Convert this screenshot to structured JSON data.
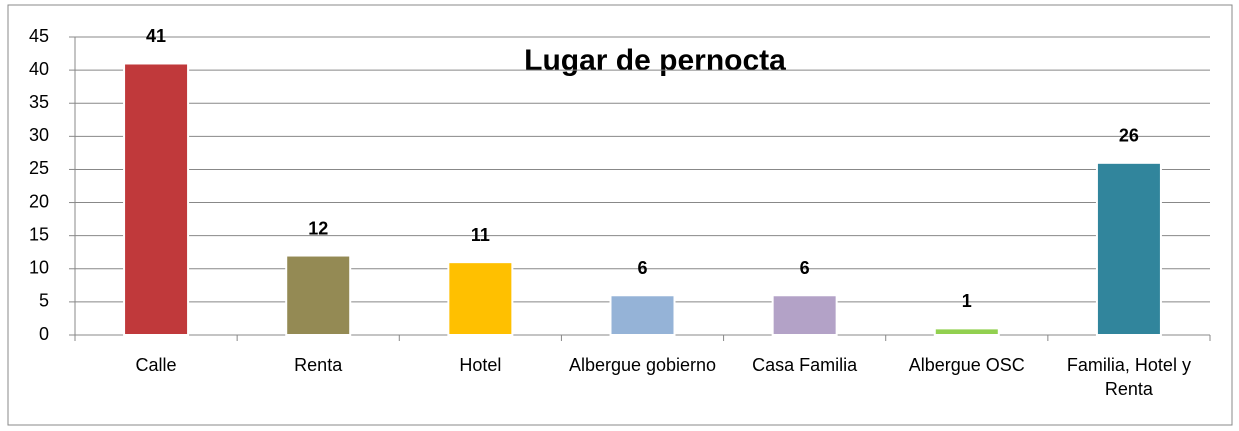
{
  "chart_data": {
    "type": "bar",
    "title": "Lugar de pernocta",
    "categories": [
      "Calle",
      "Renta",
      "Hotel",
      "Albergue gobierno",
      "Casa Familia",
      "Albergue OSC",
      "Familia, Hotel y Renta"
    ],
    "values": [
      41,
      12,
      11,
      6,
      6,
      1,
      26
    ],
    "colors": [
      "#c0393b",
      "#948a54",
      "#ffc000",
      "#95b3d7",
      "#b3a2c7",
      "#92d050",
      "#31859c"
    ],
    "ylim": [
      0,
      45
    ],
    "yticks": [
      0,
      5,
      10,
      15,
      20,
      25,
      30,
      35,
      40,
      45
    ],
    "grid": true
  }
}
